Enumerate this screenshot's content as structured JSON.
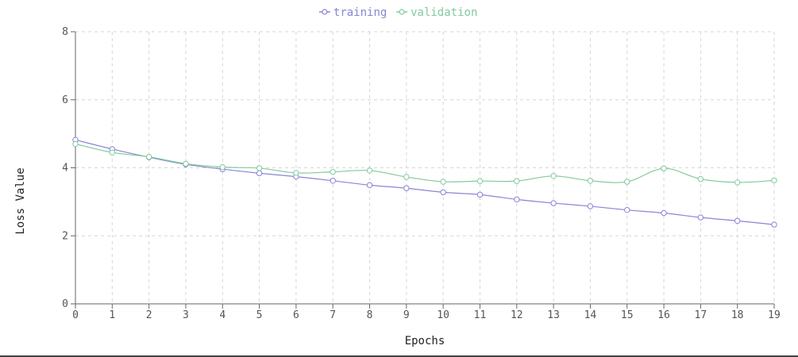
{
  "chart_data": {
    "type": "line",
    "title": "",
    "xlabel": "Epochs",
    "ylabel": "Loss Value",
    "x": [
      0,
      1,
      2,
      3,
      4,
      5,
      6,
      7,
      8,
      9,
      10,
      11,
      12,
      13,
      14,
      15,
      16,
      17,
      18,
      19
    ],
    "xlim": [
      0,
      19
    ],
    "ylim": [
      0,
      8
    ],
    "yticks": [
      0,
      2,
      4,
      6,
      8
    ],
    "grid": true,
    "legend_position": "top-center",
    "series": [
      {
        "name": "training",
        "color": "#8884d8",
        "values": [
          4.82,
          4.55,
          4.31,
          4.1,
          3.96,
          3.84,
          3.74,
          3.62,
          3.49,
          3.4,
          3.28,
          3.21,
          3.07,
          2.96,
          2.87,
          2.76,
          2.67,
          2.54,
          2.44,
          2.33
        ]
      },
      {
        "name": "validation",
        "color": "#82ca9d",
        "values": [
          4.7,
          4.45,
          4.32,
          4.12,
          4.02,
          3.99,
          3.85,
          3.88,
          3.92,
          3.73,
          3.59,
          3.61,
          3.61,
          3.76,
          3.62,
          3.59,
          3.98,
          3.67,
          3.57,
          3.63
        ]
      }
    ]
  }
}
